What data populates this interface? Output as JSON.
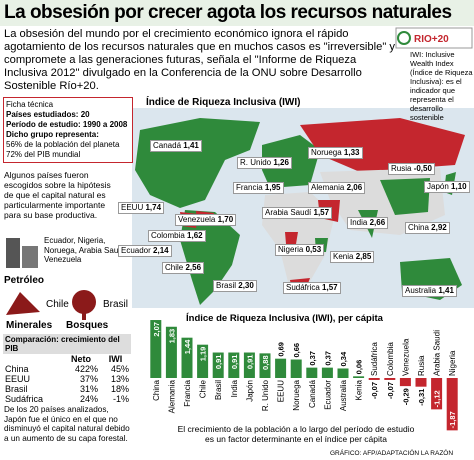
{
  "header": {
    "title": "La obsesión por crecer agota los recursos naturales",
    "intro": "La obsesión del mundo por el crecimiento económico ignora el rápido agotamiento de los recursos naturales que en muchos casos es \"irreversible\" y compromete a las generaciones futuras, señala el \"Informe de Riqueza Inclusiva 2012\" divulgado en la Conferencia de la ONU sobre Desarrollo Sostenible Río+20.",
    "logo": "RIO+20",
    "note": "IWI: Inclusive Wealth Index (Índice de Riqueza Inclusiva): es el indicador que representa el desarrollo sostenible"
  },
  "ficha": {
    "title": "Ficha técnica",
    "lines": [
      "Países estudiados: 20",
      "Período de estudio: 1990 a 2008",
      "Dicho grupo representa:",
      "56% de la población del planeta",
      "72% del PIB mundial"
    ]
  },
  "map": {
    "title": "Índice de Riqueza Inclusiva (IWI)",
    "labels": [
      {
        "name": "Canadá",
        "value": "1,41"
      },
      {
        "name": "Noruega",
        "value": "1,33"
      },
      {
        "name": "R. Unido",
        "value": "1,26"
      },
      {
        "name": "Rusia",
        "value": "-0,50"
      },
      {
        "name": "Francia",
        "value": "1,95"
      },
      {
        "name": "Alemania",
        "value": "2,06"
      },
      {
        "name": "Japón",
        "value": "1,10"
      },
      {
        "name": "EEUU",
        "value": "1,74"
      },
      {
        "name": "China",
        "value": "2,92"
      },
      {
        "name": "Arabia Saudí",
        "value": "1,57"
      },
      {
        "name": "Venezuela",
        "value": "1,70"
      },
      {
        "name": "India",
        "value": "2,66"
      },
      {
        "name": "Colombia",
        "value": "1,62"
      },
      {
        "name": "Nigeria",
        "value": "0,53"
      },
      {
        "name": "Ecuador",
        "value": "2,14"
      },
      {
        "name": "Kenia",
        "value": "2,85"
      },
      {
        "name": "Chile",
        "value": "2,56"
      },
      {
        "name": "Brasil",
        "value": "2,30"
      },
      {
        "name": "Sudáfrica",
        "value": "1,57"
      },
      {
        "name": "Australia",
        "value": "1,41"
      }
    ]
  },
  "sidebar": {
    "intro": "Algunos países fueron escogidos sobre la hipótesis de que el capital natural es particularmente importante para su base productiva.",
    "oil_countries": "Ecuador, Nigeria, Noruega, Arabia Saudí y Venezuela",
    "oil": "Petróleo",
    "mineral_country": "Chile",
    "forest_country": "Brasil",
    "minerals": "Minerales",
    "forests": "Bosques",
    "closing": "De los 20 países analizados, Japón fue el único en el que no disminuyó el capital natural debido a un aumento de su capa forestal."
  },
  "table": {
    "title": "Comparación: crecimiento del PIB",
    "header": [
      "Neto",
      "IWI"
    ],
    "rows": [
      [
        "China",
        "422%",
        "45%"
      ],
      [
        "EEUU",
        "37%",
        "13%"
      ],
      [
        "Brasil",
        "31%",
        "18%"
      ],
      [
        "Sudáfrica",
        "24%",
        "-1%"
      ]
    ]
  },
  "chart_data": {
    "type": "bar",
    "title": "Índice de Riqueza Inclusiva (IWI), per cápita",
    "categories": [
      "China",
      "Alemania",
      "Francia",
      "Chile",
      "Brasil",
      "India",
      "Japón",
      "R. Unido",
      "EEUU",
      "Noruega",
      "Canadá",
      "Ecuador",
      "Australia",
      "Kenia",
      "Sudáfrica",
      "Colombia",
      "Venezuela",
      "Rusia",
      "Arabia Saudí",
      "Nigeria"
    ],
    "values": [
      2.07,
      1.83,
      1.44,
      1.19,
      0.91,
      0.91,
      0.91,
      0.88,
      0.69,
      0.66,
      0.37,
      0.37,
      0.34,
      0.06,
      -0.07,
      -0.07,
      -0.29,
      -0.31,
      -1.12,
      -1.87
    ],
    "value_labels": [
      "2,07",
      "1,83",
      "1,44",
      "1,19",
      "0,91",
      "0,91",
      "0,91",
      "0,88",
      "0,69",
      "0,66",
      "0,37",
      "0,37",
      "0,34",
      "0,06",
      "-0,07",
      "-0,07",
      "-0,29",
      "-0,31",
      "-1,12",
      "-1,87"
    ],
    "color_positive": "#2f8a3b",
    "color_negative": "#c4262e",
    "note": "El crecimiento de la población a lo largo del período de estudio es un factor determinante en el índice per cápita"
  },
  "credit": "GRÁFICO: AFP/ADAPTACIÓN LA RAZÓN"
}
